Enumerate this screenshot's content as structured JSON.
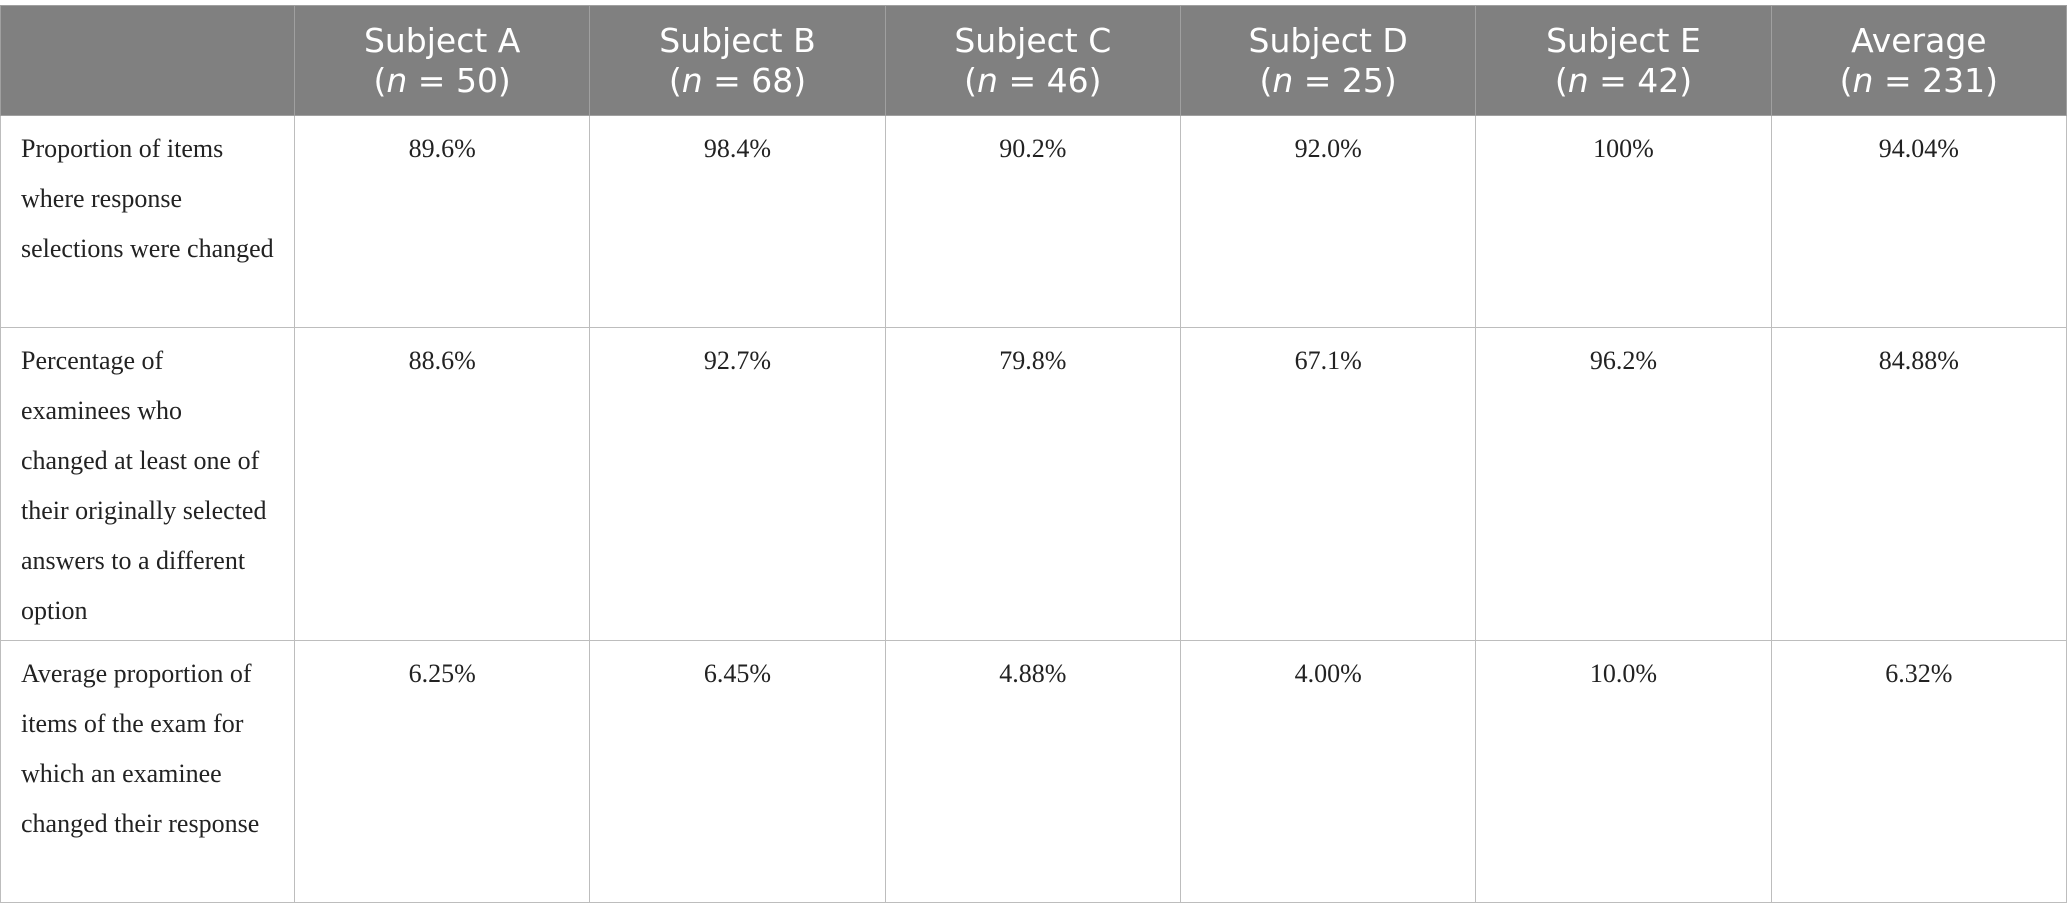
{
  "table": {
    "header": [
      {
        "title": "Subject A",
        "sub": [
          "(",
          "n",
          " = 50)"
        ]
      },
      {
        "title": "Subject B",
        "sub": [
          "(",
          "n",
          " = 68)"
        ]
      },
      {
        "title": "Subject C",
        "sub": [
          "(",
          "n",
          " = 46)"
        ]
      },
      {
        "title": "Subject D",
        "sub": [
          "(",
          "n",
          " = 25)"
        ]
      },
      {
        "title": "Subject E",
        "sub": [
          "(",
          "n",
          " = 42)"
        ]
      },
      {
        "title": "Average",
        "sub": [
          "(",
          "n",
          " = 231)"
        ]
      }
    ],
    "rows": [
      {
        "label": "Proportion of items where response selections were changed",
        "values": [
          "89.6%",
          "98.4%",
          "90.2%",
          "92.0%",
          "100%",
          "94.04%"
        ]
      },
      {
        "label": "Percentage of examinees who changed at least one of their originally selected answers to a different option",
        "values": [
          "88.6%",
          "92.7%",
          "79.8%",
          "67.1%",
          "96.2%",
          "84.88%"
        ]
      },
      {
        "label": "Average proportion of items of the exam for which an examinee changed their response",
        "values": [
          "6.25%",
          "6.45%",
          "4.88%",
          "4.00%",
          "10.0%",
          "6.32%"
        ]
      }
    ]
  }
}
